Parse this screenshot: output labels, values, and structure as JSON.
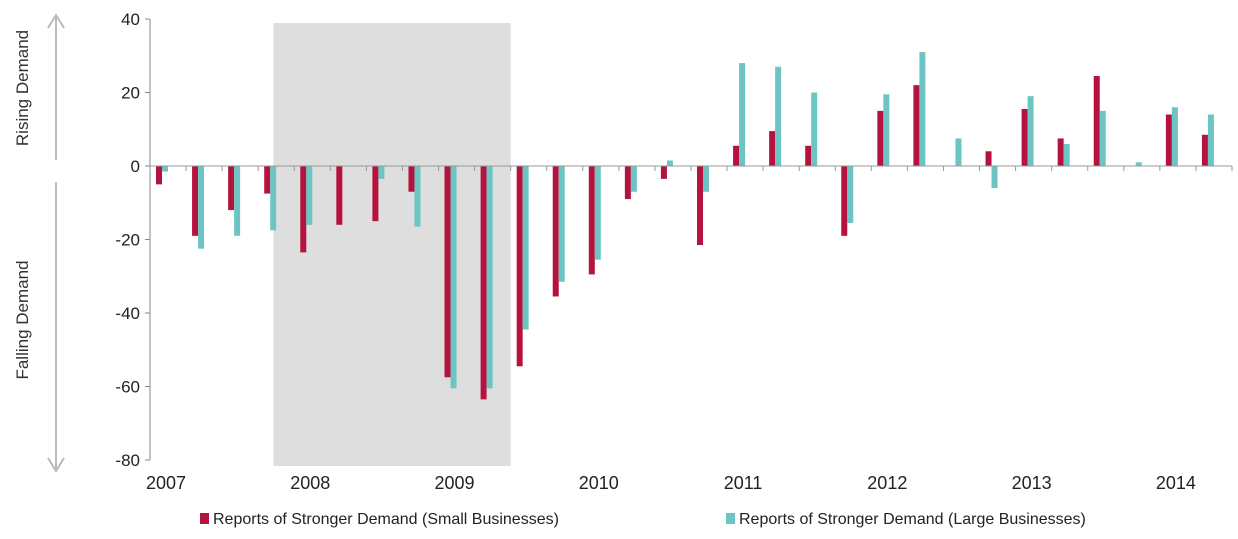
{
  "chart_data": {
    "type": "bar",
    "x": [
      "2007Q1",
      "2007Q2",
      "2007Q3",
      "2007Q4",
      "2008Q1",
      "2008Q2",
      "2008Q3",
      "2008Q4",
      "2009Q1",
      "2009Q2",
      "2009Q3",
      "2009Q4",
      "2010Q1",
      "2010Q2",
      "2010Q3",
      "2010Q4",
      "2011Q1",
      "2011Q2",
      "2011Q3",
      "2011Q4",
      "2012Q1",
      "2012Q2",
      "2012Q3",
      "2012Q4",
      "2013Q1",
      "2013Q2",
      "2013Q3",
      "2013Q4",
      "2014Q1",
      "2014Q2"
    ],
    "year_labels": [
      "2007",
      "2008",
      "2009",
      "2010",
      "2011",
      "2012",
      "2013",
      "2014"
    ],
    "series": [
      {
        "name": "Reports of Stronger Demand (Small Businesses)",
        "color": "#b5123e",
        "values": [
          -5,
          -19,
          -12,
          -7.5,
          -23.5,
          -16,
          -15,
          -7,
          -57.5,
          -63.5,
          -54.5,
          -35.5,
          -29.5,
          -9,
          -3.5,
          -21.5,
          5.5,
          9.5,
          5.5,
          -19,
          15,
          22,
          0,
          4,
          15.5,
          7.5,
          24.5,
          0,
          14,
          8.5
        ]
      },
      {
        "name": "Reports of Stronger Demand (Large Businesses)",
        "color": "#6cc5c3",
        "values": [
          -1.5,
          -22.5,
          -19,
          -17.5,
          -16,
          0,
          -3.5,
          -16.5,
          -60.5,
          -60.5,
          -44.5,
          -31.5,
          -25.5,
          -7,
          1.5,
          -7,
          28,
          27,
          20,
          -15.5,
          19.5,
          31,
          7.5,
          -6,
          19,
          6,
          15,
          1,
          16,
          14
        ]
      }
    ],
    "yticks": [
      "40",
      "20",
      "0",
      "-20",
      "-40",
      "-60",
      "-80"
    ],
    "ylim": [
      -80,
      40
    ],
    "shaded_region": {
      "from": "2007Q4",
      "to": "2009Q2",
      "color": "#dedede"
    },
    "side_labels": {
      "top": "Rising Demand",
      "bottom": "Falling Demand"
    },
    "legend_position": "bottom",
    "grid": false
  }
}
